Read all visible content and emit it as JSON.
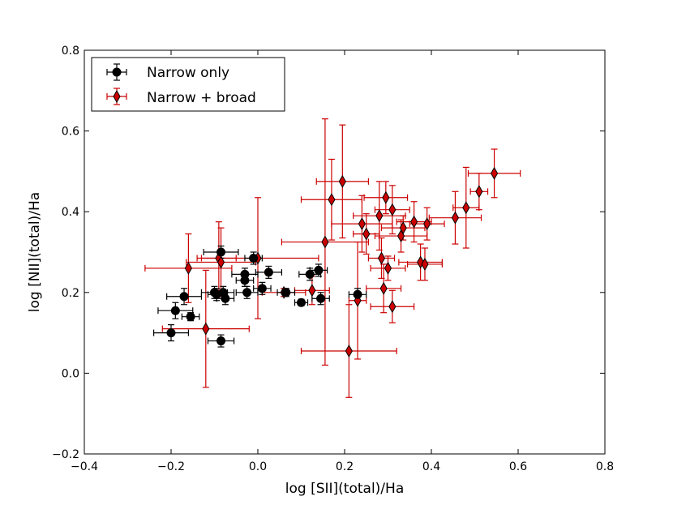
{
  "chart_data": {
    "type": "scatter",
    "xlabel": "log [SII](total)/Ha",
    "ylabel": "log [NII](total)/Ha",
    "xlim": [
      -0.4,
      0.8
    ],
    "ylim": [
      -0.2,
      0.8
    ],
    "xticks": [
      -0.4,
      -0.2,
      0.0,
      0.2,
      0.4,
      0.6,
      0.8
    ],
    "yticks": [
      -0.2,
      0.0,
      0.2,
      0.4,
      0.6,
      0.8
    ],
    "xtick_labels": [
      "−0.4",
      "−0.2",
      "0.0",
      "0.2",
      "0.4",
      "0.6",
      "0.8"
    ],
    "ytick_labels": [
      "−0.2",
      "0.0",
      "0.2",
      "0.4",
      "0.6",
      "0.8"
    ],
    "legend_position": "top-left",
    "series": [
      {
        "name": "Narrow only",
        "marker": "circle",
        "color": "#000000",
        "points": [
          {
            "x": -0.2,
            "y": 0.1,
            "xerr": 0.04,
            "yerr": 0.02
          },
          {
            "x": -0.19,
            "y": 0.155,
            "xerr": 0.04,
            "yerr": 0.02
          },
          {
            "x": -0.17,
            "y": 0.19,
            "xerr": 0.04,
            "yerr": 0.02
          },
          {
            "x": -0.155,
            "y": 0.14,
            "xerr": 0.02,
            "yerr": 0.01
          },
          {
            "x": -0.1,
            "y": 0.2,
            "xerr": 0.03,
            "yerr": 0.015
          },
          {
            "x": -0.095,
            "y": 0.195,
            "xerr": 0.02,
            "yerr": 0.015
          },
          {
            "x": -0.085,
            "y": 0.3,
            "xerr": 0.04,
            "yerr": 0.015
          },
          {
            "x": -0.085,
            "y": 0.08,
            "xerr": 0.03,
            "yerr": 0.015
          },
          {
            "x": -0.08,
            "y": 0.2,
            "xerr": 0.025,
            "yerr": 0.015
          },
          {
            "x": -0.075,
            "y": 0.185,
            "xerr": 0.02,
            "yerr": 0.015
          },
          {
            "x": -0.03,
            "y": 0.245,
            "xerr": 0.03,
            "yerr": 0.015
          },
          {
            "x": -0.03,
            "y": 0.23,
            "xerr": 0.02,
            "yerr": 0.015
          },
          {
            "x": -0.025,
            "y": 0.2,
            "xerr": 0.025,
            "yerr": 0.015
          },
          {
            "x": -0.01,
            "y": 0.285,
            "xerr": 0.02,
            "yerr": 0.015
          },
          {
            "x": 0.01,
            "y": 0.21,
            "xerr": 0.02,
            "yerr": 0.015
          },
          {
            "x": 0.025,
            "y": 0.25,
            "xerr": 0.03,
            "yerr": 0.015
          },
          {
            "x": 0.065,
            "y": 0.2,
            "xerr": 0.02,
            "yerr": 0.01
          },
          {
            "x": 0.1,
            "y": 0.175,
            "xerr": 0.015,
            "yerr": 0.008
          },
          {
            "x": 0.12,
            "y": 0.245,
            "xerr": 0.025,
            "yerr": 0.015
          },
          {
            "x": 0.14,
            "y": 0.255,
            "xerr": 0.02,
            "yerr": 0.015
          },
          {
            "x": 0.145,
            "y": 0.185,
            "xerr": 0.02,
            "yerr": 0.015
          },
          {
            "x": 0.23,
            "y": 0.195,
            "xerr": 0.02,
            "yerr": 0.015
          }
        ]
      },
      {
        "name": "Narrow + broad",
        "marker": "diamond",
        "color": "#cc0000",
        "points": [
          {
            "x": -0.16,
            "y": 0.26,
            "xerr": 0.1,
            "yerr": 0.085
          },
          {
            "x": -0.12,
            "y": 0.11,
            "xerr": 0.1,
            "yerr": 0.145
          },
          {
            "x": -0.09,
            "y": 0.285,
            "xerr": 0.04,
            "yerr": 0.09
          },
          {
            "x": -0.085,
            "y": 0.275,
            "xerr": 0.08,
            "yerr": 0.085
          },
          {
            "x": 0.0,
            "y": 0.285,
            "xerr": 0.14,
            "yerr": 0.15
          },
          {
            "x": 0.06,
            "y": 0.2,
            "xerr": 0.05,
            "yerr": 0.01
          },
          {
            "x": 0.125,
            "y": 0.205,
            "xerr": 0.04,
            "yerr": 0.035
          },
          {
            "x": 0.155,
            "y": 0.325,
            "xerr": 0.1,
            "yerr": 0.305
          },
          {
            "x": 0.17,
            "y": 0.43,
            "xerr": 0.07,
            "yerr": 0.1
          },
          {
            "x": 0.195,
            "y": 0.475,
            "xerr": 0.06,
            "yerr": 0.14
          },
          {
            "x": 0.21,
            "y": 0.055,
            "xerr": 0.11,
            "yerr": 0.115
          },
          {
            "x": 0.23,
            "y": 0.18,
            "xerr": 0.02,
            "yerr": 0.145
          },
          {
            "x": 0.24,
            "y": 0.37,
            "xerr": 0.07,
            "yerr": 0.07
          },
          {
            "x": 0.25,
            "y": 0.345,
            "xerr": 0.03,
            "yerr": 0.05
          },
          {
            "x": 0.28,
            "y": 0.39,
            "xerr": 0.06,
            "yerr": 0.085
          },
          {
            "x": 0.285,
            "y": 0.285,
            "xerr": 0.03,
            "yerr": 0.05
          },
          {
            "x": 0.29,
            "y": 0.21,
            "xerr": 0.04,
            "yerr": 0.06
          },
          {
            "x": 0.295,
            "y": 0.435,
            "xerr": 0.05,
            "yerr": 0.04
          },
          {
            "x": 0.3,
            "y": 0.26,
            "xerr": 0.04,
            "yerr": 0.03
          },
          {
            "x": 0.31,
            "y": 0.165,
            "xerr": 0.05,
            "yerr": 0.04
          },
          {
            "x": 0.31,
            "y": 0.405,
            "xerr": 0.04,
            "yerr": 0.06
          },
          {
            "x": 0.33,
            "y": 0.34,
            "xerr": 0.06,
            "yerr": 0.04
          },
          {
            "x": 0.335,
            "y": 0.36,
            "xerr": 0.05,
            "yerr": 0.03
          },
          {
            "x": 0.36,
            "y": 0.375,
            "xerr": 0.04,
            "yerr": 0.05
          },
          {
            "x": 0.375,
            "y": 0.275,
            "xerr": 0.05,
            "yerr": 0.045
          },
          {
            "x": 0.385,
            "y": 0.27,
            "xerr": 0.04,
            "yerr": 0.04
          },
          {
            "x": 0.39,
            "y": 0.37,
            "xerr": 0.04,
            "yerr": 0.04
          },
          {
            "x": 0.455,
            "y": 0.385,
            "xerr": 0.06,
            "yerr": 0.065
          },
          {
            "x": 0.48,
            "y": 0.41,
            "xerr": 0.03,
            "yerr": 0.1
          },
          {
            "x": 0.51,
            "y": 0.45,
            "xerr": 0.02,
            "yerr": 0.045
          },
          {
            "x": 0.545,
            "y": 0.495,
            "xerr": 0.06,
            "yerr": 0.06
          }
        ]
      }
    ]
  }
}
